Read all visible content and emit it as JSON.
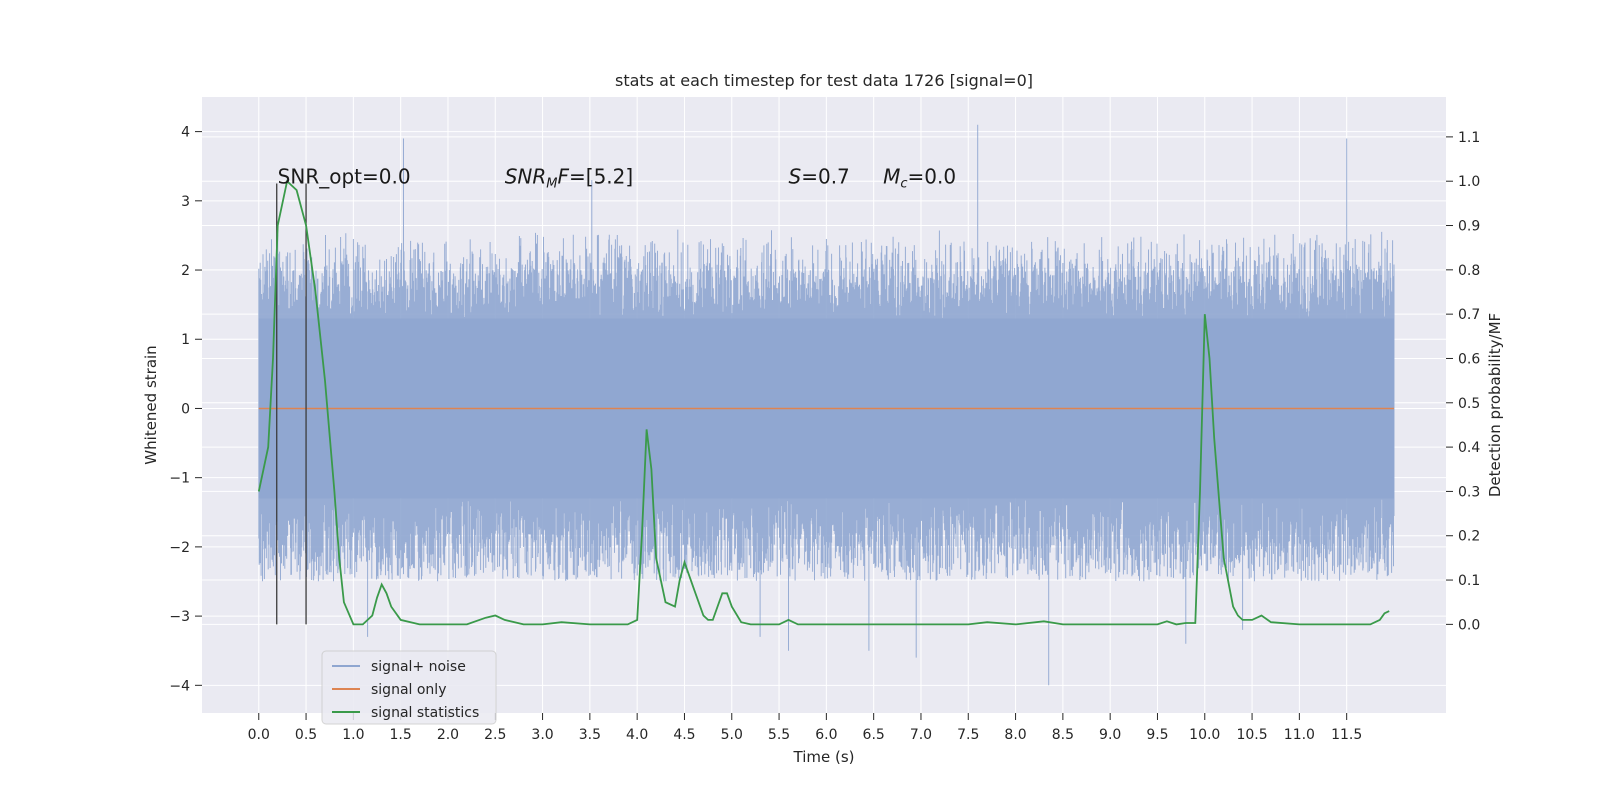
{
  "chart_data": {
    "type": "line",
    "title": "stats at each timestep for test data 1726 [signal=0]",
    "xlabel": "Time (s)",
    "ylabel": "Whitened strain",
    "ylabel_right": "Detection probability/MF",
    "xlim": [
      -0.6,
      12.55
    ],
    "ylim": [
      -4.4,
      4.5
    ],
    "ylim_right": [
      -0.2,
      1.19
    ],
    "x_ticks": [
      0.0,
      0.5,
      1.0,
      1.5,
      2.0,
      2.5,
      3.0,
      3.5,
      4.0,
      4.5,
      5.0,
      5.5,
      6.0,
      6.5,
      7.0,
      7.5,
      8.0,
      8.5,
      9.0,
      9.5,
      10.0,
      10.5,
      11.0,
      11.5
    ],
    "x_tick_labels": [
      "0.0",
      "0.5",
      "1.0",
      "1.5",
      "2.0",
      "2.5",
      "3.0",
      "3.5",
      "4.0",
      "4.5",
      "5.0",
      "5.5",
      "6.0",
      "6.5",
      "7.0",
      "7.5",
      "8.0",
      "8.5",
      "9.0",
      "9.5",
      "10.0",
      "10.5",
      "11.0",
      "11.5"
    ],
    "y_ticks": [
      -4,
      -3,
      -2,
      -1,
      0,
      1,
      2,
      3,
      4
    ],
    "y_tick_labels": [
      "−4",
      "−3",
      "−2",
      "−1",
      "0",
      "1",
      "2",
      "3",
      "4"
    ],
    "y_ticks_right": [
      0.0,
      0.1,
      0.2,
      0.3,
      0.4,
      0.5,
      0.6,
      0.7,
      0.8,
      0.9,
      1.0,
      1.1
    ],
    "y_tick_labels_right": [
      "0.0",
      "0.1",
      "0.2",
      "0.3",
      "0.4",
      "0.5",
      "0.6",
      "0.7",
      "0.8",
      "0.9",
      "1.0",
      "1.1"
    ],
    "grid": true,
    "legend_position": "lower-left",
    "series": [
      {
        "name": "signal+ noise",
        "color": "#8fa6d0",
        "axis": "left",
        "x_range": [
          0.0,
          12.0
        ],
        "core_band": [
          -1.3,
          1.3
        ],
        "typical_extremes": [
          -2.5,
          2.6
        ],
        "peak_spikes": [
          {
            "x": 1.53,
            "y": 3.9
          },
          {
            "x": 3.52,
            "y": 3.3
          },
          {
            "x": 7.6,
            "y": 4.1
          },
          {
            "x": 11.5,
            "y": 3.9
          },
          {
            "x": 1.15,
            "y": -3.3
          },
          {
            "x": 5.3,
            "y": -3.3
          },
          {
            "x": 5.6,
            "y": -3.5
          },
          {
            "x": 6.45,
            "y": -3.5
          },
          {
            "x": 6.95,
            "y": -3.6
          },
          {
            "x": 8.35,
            "y": -4.0
          },
          {
            "x": 9.8,
            "y": -3.4
          },
          {
            "x": 10.4,
            "y": -3.2
          }
        ]
      },
      {
        "name": "signal only",
        "color": "#dd8452",
        "axis": "left",
        "x": [
          0.0,
          12.0
        ],
        "y": [
          0.0,
          0.0
        ]
      },
      {
        "name": "signal statistics",
        "color": "#3a9a4a",
        "axis": "right",
        "x": [
          0.0,
          0.05,
          0.1,
          0.15,
          0.2,
          0.3,
          0.4,
          0.5,
          0.6,
          0.7,
          0.8,
          0.85,
          0.9,
          1.0,
          1.1,
          1.2,
          1.25,
          1.3,
          1.35,
          1.4,
          1.5,
          1.7,
          2.0,
          2.2,
          2.4,
          2.5,
          2.6,
          2.8,
          3.0,
          3.2,
          3.5,
          3.7,
          3.9,
          4.0,
          4.05,
          4.1,
          4.15,
          4.2,
          4.3,
          4.4,
          4.45,
          4.5,
          4.55,
          4.6,
          4.7,
          4.75,
          4.8,
          4.9,
          4.95,
          5.0,
          5.1,
          5.2,
          5.5,
          5.6,
          5.7,
          6.0,
          6.5,
          6.7,
          7.0,
          7.5,
          7.7,
          8.0,
          8.3,
          8.5,
          9.0,
          9.5,
          9.6,
          9.7,
          9.8,
          9.9,
          9.95,
          10.0,
          10.05,
          10.1,
          10.2,
          10.3,
          10.35,
          10.4,
          10.5,
          10.6,
          10.7,
          11.0,
          11.5,
          11.75,
          11.8,
          11.85,
          11.9,
          11.95
        ],
        "y": [
          0.3,
          0.35,
          0.4,
          0.6,
          0.9,
          1.0,
          0.98,
          0.9,
          0.75,
          0.55,
          0.3,
          0.15,
          0.05,
          0.0,
          0.0,
          0.02,
          0.06,
          0.09,
          0.07,
          0.04,
          0.01,
          0.0,
          0.0,
          0.0,
          0.015,
          0.02,
          0.01,
          0.0,
          0.0,
          0.005,
          0.0,
          0.0,
          0.0,
          0.01,
          0.2,
          0.44,
          0.35,
          0.15,
          0.05,
          0.04,
          0.1,
          0.14,
          0.11,
          0.08,
          0.02,
          0.01,
          0.01,
          0.07,
          0.07,
          0.04,
          0.005,
          0.0,
          0.0,
          0.01,
          0.0,
          0.0,
          0.0,
          0.0,
          0.0,
          0.0,
          0.005,
          0.0,
          0.007,
          0.0,
          0.0,
          0.0,
          0.007,
          0.0,
          0.003,
          0.003,
          0.3,
          0.7,
          0.6,
          0.42,
          0.15,
          0.04,
          0.02,
          0.01,
          0.01,
          0.02,
          0.005,
          0.0,
          0.0,
          0.0,
          0.005,
          0.01,
          0.025,
          0.03
        ]
      }
    ],
    "vertical_markers": [
      0.19,
      0.5
    ],
    "annotations": [
      {
        "x": 0.2,
        "y": 3.25,
        "text": "SNR_opt=0.0"
      },
      {
        "x": 2.6,
        "y": 3.25,
        "text_base": "SNR",
        "text_sub": "M",
        "text_tail": "F=[5.2]"
      },
      {
        "x": 5.6,
        "y": 3.25,
        "text_base": "S",
        "text_tail": "=0.7"
      },
      {
        "x": 6.6,
        "y": 3.25,
        "text_base": "M",
        "text_sub": "c",
        "text_tail": "=0.0"
      }
    ],
    "colors": {
      "plot_background": "#eaeaf2",
      "grid": "#ffffff",
      "marker_line": "#3c3c3c"
    }
  },
  "legend": {
    "entries": [
      {
        "label": "signal+ noise",
        "color": "#8fa6d0"
      },
      {
        "label": "signal only",
        "color": "#dd8452"
      },
      {
        "label": "signal statistics",
        "color": "#3a9a4a"
      }
    ]
  }
}
